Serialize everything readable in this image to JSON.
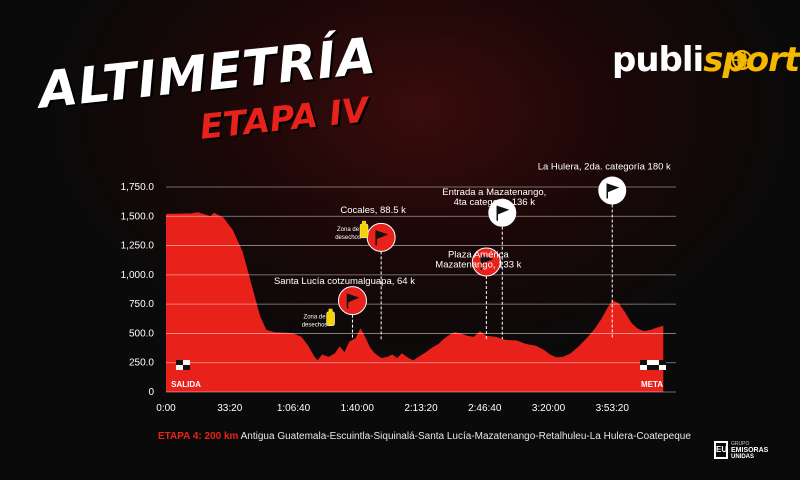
{
  "title": "ALTIMETRÍA",
  "subtitle": "ETAPA IV",
  "logo": {
    "part1": "publi",
    "part2": "sport"
  },
  "chart_data": {
    "type": "area",
    "x_ticks": [
      {
        "t": 0,
        "label": "0:00"
      },
      {
        "t": 2000,
        "label": "33:20"
      },
      {
        "t": 4000,
        "label": "1:06:40"
      },
      {
        "t": 6000,
        "label": "1:40:00"
      },
      {
        "t": 8000,
        "label": "2:13:20"
      },
      {
        "t": 10000,
        "label": "2:46:40"
      },
      {
        "t": 12000,
        "label": "3:20:00"
      },
      {
        "t": 14000,
        "label": "3:53:20"
      }
    ],
    "y_ticks": [
      "0",
      "250.0",
      "500.0",
      "750.0",
      "1,000.0",
      "1,250.0",
      "1,500.0",
      "1,750.0"
    ],
    "ylim": [
      0,
      1750
    ],
    "xlim": [
      0,
      16000
    ],
    "grid": true,
    "color": "#e8221b",
    "profile": [
      [
        0,
        1520
      ],
      [
        800,
        1525
      ],
      [
        1000,
        1535
      ],
      [
        1400,
        1500
      ],
      [
        1500,
        1530
      ],
      [
        1650,
        1510
      ],
      [
        1800,
        1490
      ],
      [
        2100,
        1380
      ],
      [
        2400,
        1200
      ],
      [
        2700,
        900
      ],
      [
        2950,
        650
      ],
      [
        3150,
        530
      ],
      [
        3400,
        510
      ],
      [
        3800,
        505
      ],
      [
        4000,
        500
      ],
      [
        4250,
        470
      ],
      [
        4450,
        400
      ],
      [
        4650,
        305
      ],
      [
        4750,
        270
      ],
      [
        4900,
        320
      ],
      [
        5100,
        300
      ],
      [
        5300,
        330
      ],
      [
        5450,
        390
      ],
      [
        5600,
        340
      ],
      [
        5750,
        430
      ],
      [
        5950,
        460
      ],
      [
        6100,
        545
      ],
      [
        6250,
        470
      ],
      [
        6400,
        380
      ],
      [
        6550,
        330
      ],
      [
        6750,
        290
      ],
      [
        6950,
        300
      ],
      [
        7100,
        320
      ],
      [
        7250,
        290
      ],
      [
        7400,
        330
      ],
      [
        7550,
        300
      ],
      [
        7750,
        270
      ],
      [
        7950,
        305
      ],
      [
        8150,
        340
      ],
      [
        8350,
        380
      ],
      [
        8550,
        410
      ],
      [
        8700,
        450
      ],
      [
        8900,
        490
      ],
      [
        9050,
        510
      ],
      [
        9250,
        500
      ],
      [
        9450,
        480
      ],
      [
        9650,
        470
      ],
      [
        9850,
        520
      ],
      [
        10050,
        480
      ],
      [
        10350,
        470
      ],
      [
        10650,
        445
      ],
      [
        11000,
        440
      ],
      [
        11300,
        410
      ],
      [
        11600,
        395
      ],
      [
        11850,
        360
      ],
      [
        12050,
        320
      ],
      [
        12250,
        295
      ],
      [
        12450,
        300
      ],
      [
        12700,
        330
      ],
      [
        12950,
        390
      ],
      [
        13200,
        460
      ],
      [
        13450,
        540
      ],
      [
        13650,
        620
      ],
      [
        13850,
        720
      ],
      [
        14000,
        780
      ],
      [
        14200,
        760
      ],
      [
        14400,
        680
      ],
      [
        14600,
        590
      ],
      [
        14800,
        540
      ],
      [
        15000,
        520
      ],
      [
        15200,
        530
      ],
      [
        15400,
        550
      ],
      [
        15600,
        565
      ]
    ],
    "annotations": [
      {
        "label": "Cocales, 88.5 k",
        "t": 6750,
        "flag_h": 1320,
        "label_h": 1530,
        "style": "red",
        "extra": "Zona de\ndesechos",
        "extra_t": 6150,
        "extra_h": 1350
      },
      {
        "label": "Santa Lucía cotzumalguapa, 64 k",
        "t": 5850,
        "flag_h": 780,
        "label_h": 920,
        "style": "red",
        "extra": "Zona de\ndesechos",
        "extra_t": 5100,
        "extra_h": 600
      },
      {
        "label": "Entrada a Mazatenango,\n4ta categoría 136 k",
        "t": 10550,
        "flag_h": 1530,
        "label_h": 1680,
        "style": "white"
      },
      {
        "label": "Plaza América\nMazatenango, 133 k",
        "t": 10050,
        "flag_h": 1110,
        "label_h": 1150,
        "style": "red"
      },
      {
        "label": "La Hulera, 2da. categoría 180 k",
        "t": 14000,
        "flag_h": 1720,
        "label_h": 1900,
        "style": "white"
      }
    ],
    "start_label": "SALIDA",
    "finish_label": "META"
  },
  "footer": {
    "highlight": "ETAPA 4: 200 km",
    "route": "Antigua Guatemala-Escuintla-Siquinalá-Santa Lucía-Mazatenango-Retalhuleu-La Hulera-Coatepeque"
  },
  "brand": {
    "box": "EU",
    "line1": "GRUPO",
    "line2": "EMISORAS",
    "line3": "UNIDAS"
  }
}
